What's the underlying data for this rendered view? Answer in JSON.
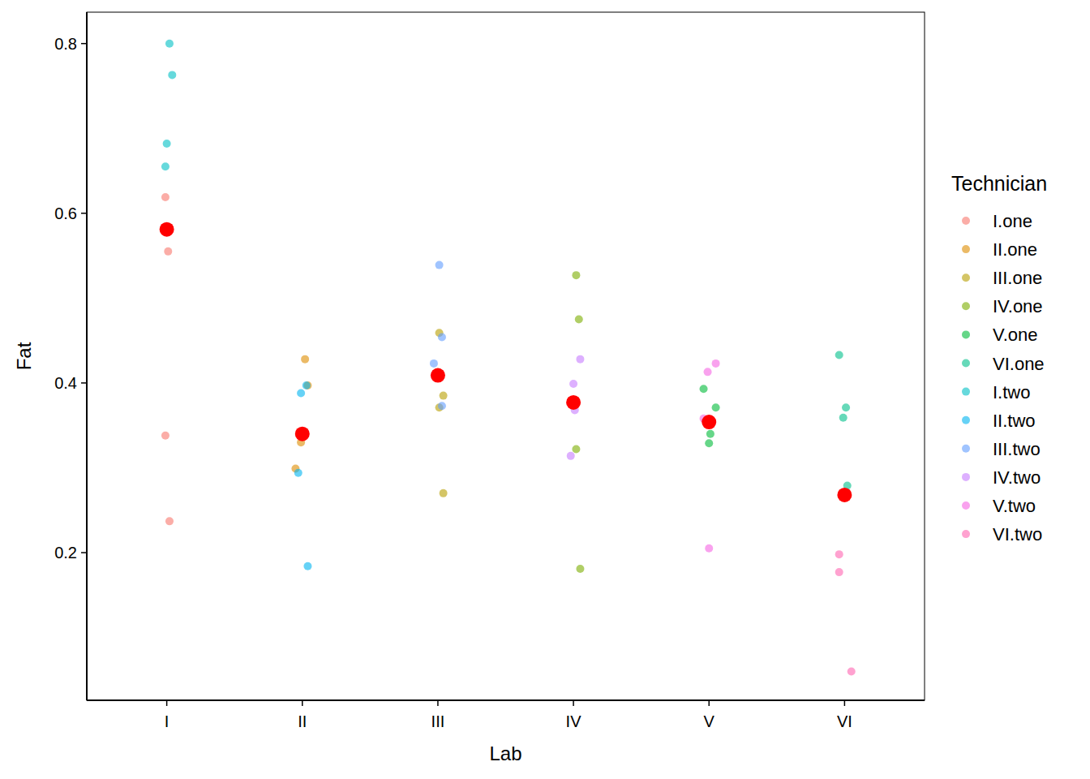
{
  "chart_data": {
    "type": "scatter",
    "x_label": "Lab",
    "y_label": "Fat",
    "legend_title": "Technician",
    "legend": "right",
    "grid": false,
    "xlim": [
      0.41,
      6.59
    ],
    "xticks": [
      {
        "value": 1,
        "label": "I"
      },
      {
        "value": 2,
        "label": "II"
      },
      {
        "value": 3,
        "label": "III"
      },
      {
        "value": 4,
        "label": "IV"
      },
      {
        "value": 5,
        "label": "V"
      },
      {
        "value": 6,
        "label": "VI"
      }
    ],
    "ylim": [
      0.026,
      0.837
    ],
    "yticks": [
      0.2,
      0.4,
      0.6,
      0.8
    ],
    "series": [
      {
        "name": "I.one",
        "color": "#F8766D",
        "marker": "circle",
        "x": [
          0.99,
          1.01,
          0.99,
          1.02
        ],
        "values": [
          0.619,
          0.555,
          0.338,
          0.237
        ]
      },
      {
        "name": "II.one",
        "color": "#DE8C00",
        "marker": "circle",
        "x": [
          2.02,
          2.04,
          1.99,
          1.95
        ],
        "values": [
          0.428,
          0.397,
          0.33,
          0.299
        ]
      },
      {
        "name": "III.one",
        "color": "#B79F00",
        "marker": "circle",
        "x": [
          3.01,
          3.04,
          3.01,
          3.04
        ],
        "values": [
          0.459,
          0.385,
          0.371,
          0.27
        ]
      },
      {
        "name": "IV.one",
        "color": "#7CAE00",
        "marker": "circle",
        "x": [
          4.02,
          4.04,
          4.02,
          4.05
        ],
        "values": [
          0.527,
          0.475,
          0.322,
          0.181
        ]
      },
      {
        "name": "V.one",
        "color": "#00BA38",
        "marker": "circle",
        "x": [
          4.96,
          5.05,
          5.0,
          5.01
        ],
        "values": [
          0.393,
          0.371,
          0.329,
          0.34
        ]
      },
      {
        "name": "VI.one",
        "color": "#00C08B",
        "marker": "circle",
        "x": [
          5.96,
          6.01,
          5.99,
          6.02
        ],
        "values": [
          0.433,
          0.371,
          0.359,
          0.279
        ]
      },
      {
        "name": "I.two",
        "color": "#00BFC4",
        "marker": "circle",
        "x": [
          1.02,
          1.04,
          1.0,
          0.99
        ],
        "values": [
          0.8,
          0.763,
          0.682,
          0.655
        ]
      },
      {
        "name": "II.two",
        "color": "#00B4F0",
        "marker": "circle",
        "x": [
          2.03,
          1.99,
          1.97,
          2.04
        ],
        "values": [
          0.397,
          0.388,
          0.294,
          0.184
        ]
      },
      {
        "name": "III.two",
        "color": "#619CFF",
        "marker": "circle",
        "x": [
          3.01,
          3.03,
          2.97,
          3.03
        ],
        "values": [
          0.539,
          0.454,
          0.423,
          0.373
        ]
      },
      {
        "name": "IV.two",
        "color": "#C77CFF",
        "marker": "circle",
        "x": [
          4.05,
          4.0,
          4.01,
          3.98
        ],
        "values": [
          0.428,
          0.399,
          0.368,
          0.314
        ]
      },
      {
        "name": "V.two",
        "color": "#F564E3",
        "marker": "circle",
        "x": [
          5.05,
          4.99,
          4.96,
          5.0
        ],
        "values": [
          0.423,
          0.413,
          0.358,
          0.205
        ]
      },
      {
        "name": "VI.two",
        "color": "#FF64B0",
        "marker": "circle",
        "x": [
          5.99,
          5.96,
          5.96,
          6.05
        ],
        "values": [
          0.267,
          0.198,
          0.177,
          0.06
        ]
      }
    ],
    "means": {
      "color": "#FF0000",
      "marker": "circle",
      "x": [
        1,
        2,
        3,
        4,
        5,
        6
      ],
      "values": [
        0.581,
        0.34,
        0.409,
        0.377,
        0.354,
        0.268
      ]
    }
  }
}
